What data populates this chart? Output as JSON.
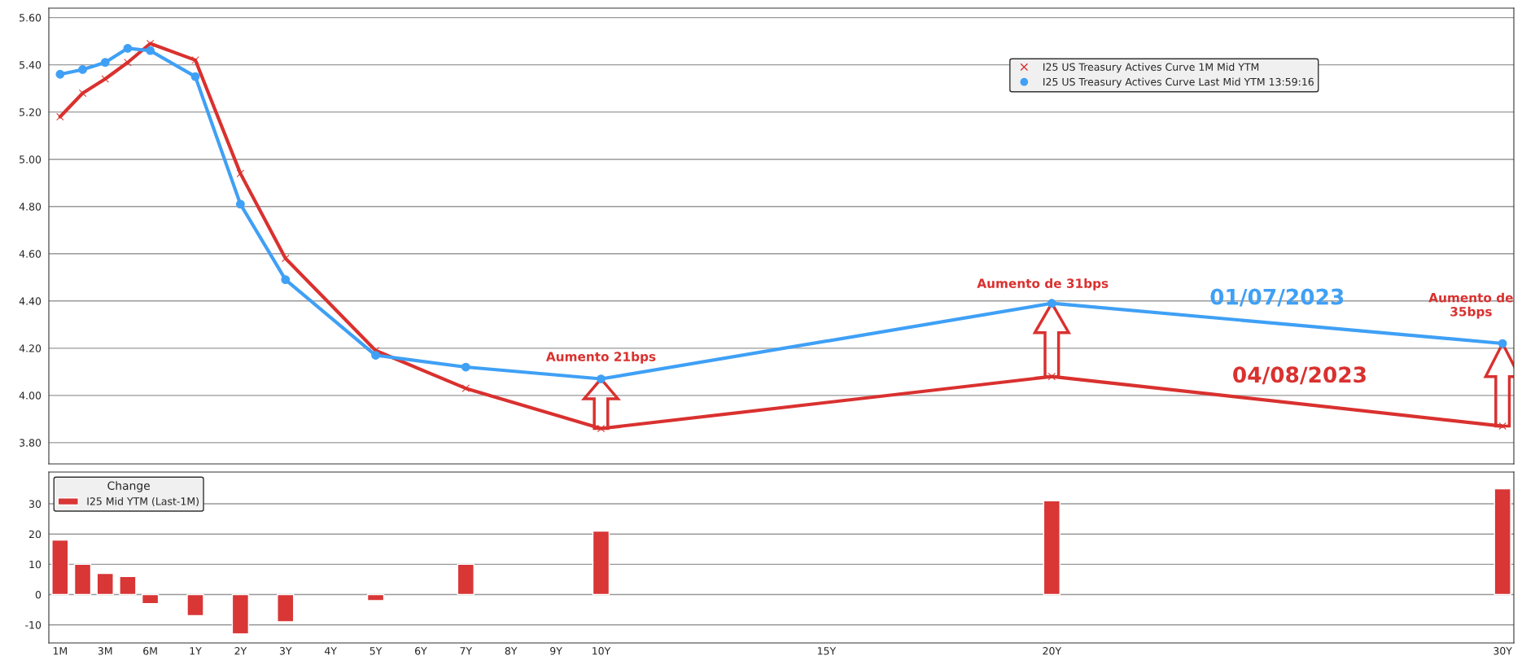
{
  "chart_data": [
    {
      "type": "line",
      "categories": [
        null,
        null,
        null,
        null,
        null,
        null,
        null,
        null,
        null,
        null,
        null,
        null,
        null,
        null,
        null,
        null,
        null,
        null,
        null,
        null,
        null,
        null,
        null,
        null,
        null,
        null,
        null,
        null,
        null,
        null,
        null,
        null,
        null,
        null,
        null,
        null,
        null,
        null,
        null,
        null,
        null,
        null,
        null,
        null,
        null,
        null,
        null,
        null,
        null,
        null,
        null,
        null,
        null,
        null,
        null,
        null,
        null,
        null,
        null,
        null,
        null,
        null,
        null,
        null,
        null
      ],
      "series": [
        {
          "name": "I25 US Treasury Actives Curve 1M Mid YTM",
          "color": "#d9312f",
          "marker": "cross",
          "values": [
            5.18,
            5.28,
            5.34,
            5.41,
            5.49,
            null,
            5.42,
            null,
            4.94,
            null,
            4.58,
            null,
            null,
            null,
            4.19,
            null,
            null,
            null,
            4.03,
            null,
            null,
            null,
            null,
            null,
            3.86,
            null,
            null,
            null,
            null,
            null,
            null,
            null,
            null,
            null,
            null,
            null,
            null,
            null,
            null,
            null,
            null,
            null,
            null,
            null,
            4.08,
            null,
            null,
            null,
            null,
            null,
            null,
            null,
            null,
            null,
            null,
            null,
            null,
            null,
            null,
            null,
            null,
            null,
            null,
            null,
            3.87
          ]
        },
        {
          "name": "I25 US Treasury Actives Curve Last Mid YTM 13:59:16",
          "color": "#3fa0f5",
          "marker": "circle",
          "values": [
            5.36,
            5.38,
            5.41,
            5.47,
            5.46,
            null,
            5.35,
            null,
            4.81,
            null,
            4.49,
            null,
            null,
            null,
            4.17,
            null,
            null,
            null,
            4.12,
            null,
            null,
            null,
            null,
            null,
            4.07,
            null,
            null,
            null,
            null,
            null,
            null,
            null,
            null,
            null,
            null,
            null,
            null,
            null,
            null,
            null,
            null,
            null,
            null,
            null,
            4.39,
            null,
            null,
            null,
            null,
            null,
            null,
            null,
            null,
            null,
            null,
            null,
            null,
            null,
            null,
            null,
            null,
            null,
            null,
            null,
            4.22
          ]
        }
      ],
      "ylim": [
        3.71,
        5.64
      ],
      "yticks": [
        {
          "value": 3.8,
          "label": "3.80"
        },
        {
          "value": 4.0,
          "label": "4.00"
        },
        {
          "value": 4.2,
          "label": "4.20"
        },
        {
          "value": 4.4,
          "label": "4.40"
        },
        {
          "value": 4.6,
          "label": "4.60"
        },
        {
          "value": 4.8,
          "label": "4.80"
        },
        {
          "value": 5.0,
          "label": "5.00"
        },
        {
          "value": 5.2,
          "label": "5.20"
        },
        {
          "value": 5.4,
          "label": "5.40"
        },
        {
          "value": 5.6,
          "label": "5.60"
        }
      ],
      "grid": "y",
      "legend": "top right",
      "tick_labels": "y",
      "annotations": [
        "Aumento 21bps",
        "Aumento de 31bps",
        "Aumento de\n35bps",
        "01/07/2023",
        "04/08/2023"
      ]
    },
    {
      "type": "bar",
      "categories": [
        "1M",
        null,
        "3M",
        null,
        "6M",
        null,
        "1Y",
        null,
        "2Y",
        null,
        "3Y",
        null,
        "4Y",
        null,
        "5Y",
        null,
        "6Y",
        null,
        "7Y",
        null,
        "8Y",
        null,
        "9Y",
        null,
        "10Y",
        null,
        null,
        null,
        null,
        null,
        null,
        null,
        null,
        null,
        "15Y",
        null,
        null,
        null,
        null,
        null,
        null,
        null,
        null,
        null,
        "20Y",
        null,
        null,
        null,
        null,
        null,
        null,
        null,
        null,
        null,
        null,
        null,
        null,
        null,
        null,
        null,
        null,
        null,
        null,
        null,
        "30Y"
      ],
      "series": [
        {
          "name": "I25 Mid YTM (Last-1M)",
          "color": "#d93636",
          "values": [
            18,
            10,
            7,
            6,
            -3,
            null,
            -7,
            null,
            -13,
            null,
            -9,
            null,
            null,
            null,
            -2,
            null,
            null,
            null,
            10,
            null,
            null,
            null,
            null,
            null,
            21,
            null,
            null,
            null,
            null,
            null,
            null,
            null,
            null,
            null,
            null,
            null,
            null,
            null,
            null,
            null,
            null,
            null,
            null,
            null,
            31,
            null,
            null,
            null,
            null,
            null,
            null,
            null,
            null,
            null,
            null,
            null,
            null,
            null,
            null,
            null,
            null,
            null,
            null,
            null,
            35
          ]
        }
      ],
      "legend_title": "Change",
      "legend": "top left",
      "ylim": [
        -16,
        40.5
      ],
      "yticks": [
        -10,
        0,
        10,
        20,
        30
      ],
      "grid": "y"
    }
  ]
}
